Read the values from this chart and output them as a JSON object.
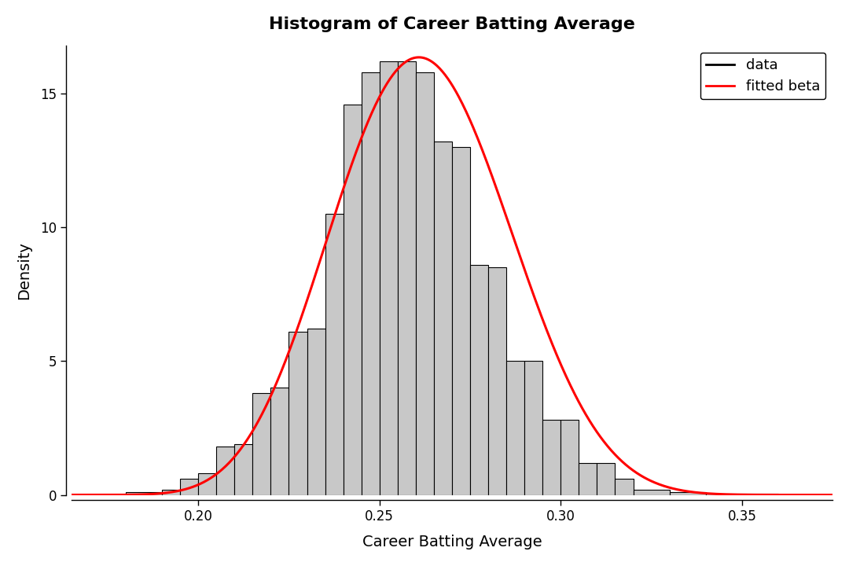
{
  "title": "Histogram of Career Batting Average",
  "xlabel": "Career Batting Average",
  "ylabel": "Density",
  "bar_color": "#c8c8c8",
  "bar_edgecolor": "#000000",
  "line_color_data": "#000000",
  "line_color_beta": "#ff0000",
  "xlim": [
    0.165,
    0.375
  ],
  "ylim": [
    0,
    16.8
  ],
  "yticks": [
    0,
    5,
    10,
    15
  ],
  "xticks": [
    0.2,
    0.25,
    0.3,
    0.35
  ],
  "bin_edges": [
    0.18,
    0.19,
    0.195,
    0.2,
    0.205,
    0.21,
    0.215,
    0.22,
    0.225,
    0.23,
    0.235,
    0.24,
    0.245,
    0.25,
    0.255,
    0.26,
    0.265,
    0.27,
    0.275,
    0.28,
    0.285,
    0.29,
    0.295,
    0.3,
    0.305,
    0.31,
    0.315,
    0.32,
    0.33,
    0.34,
    0.36
  ],
  "bin_heights": [
    0.1,
    0.2,
    0.6,
    0.8,
    1.8,
    1.9,
    3.8,
    4.0,
    6.1,
    6.2,
    10.5,
    14.6,
    15.8,
    16.2,
    16.2,
    15.8,
    13.2,
    13.0,
    8.6,
    8.5,
    5.0,
    5.0,
    2.8,
    2.8,
    1.2,
    1.2,
    0.6,
    0.2,
    0.1,
    0.05
  ],
  "beta_mean": 0.2605,
  "beta_std": 0.0275,
  "legend_entries": [
    "data",
    "fitted beta"
  ],
  "background_color": "#ffffff",
  "figsize": [
    10.8,
    7.2
  ],
  "dpi": 100
}
